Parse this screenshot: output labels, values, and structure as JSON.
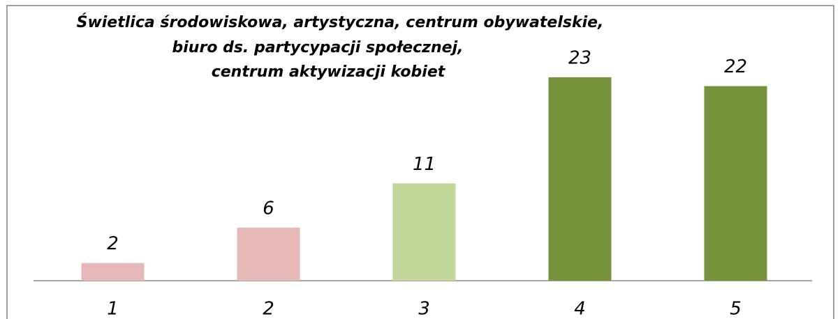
{
  "chart_data": {
    "type": "bar",
    "title": [
      "Świetlica środowiskowa,  artystyczna, centrum obywatelskie,",
      "biuro ds. partycypacji społecznej,",
      "centrum aktywizacji  kobiet"
    ],
    "categories": [
      "1",
      "2",
      "3",
      "4",
      "5"
    ],
    "values": [
      2,
      6,
      11,
      23,
      22
    ],
    "colors": [
      "#e6b9b8",
      "#e6b9b8",
      "#c4d79b",
      "#77933c",
      "#77933c"
    ]
  }
}
